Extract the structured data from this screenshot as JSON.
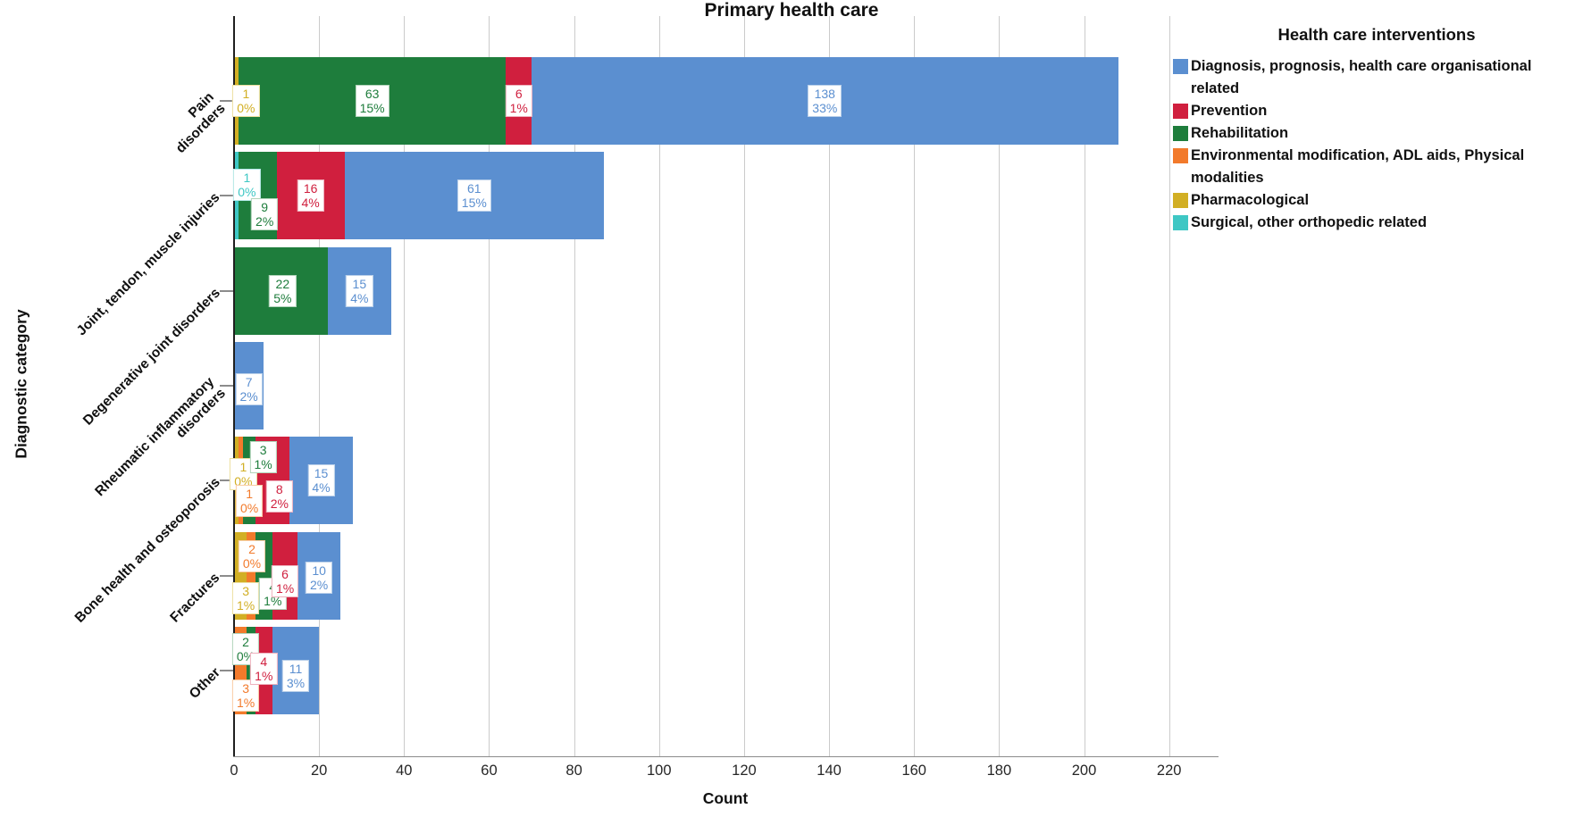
{
  "title": "Primary health care",
  "series": {
    "diagnosis": {
      "label": "Diagnosis, prognosis, health care organisational related",
      "color": "#5B8FD0",
      "light": "#b9cfe9"
    },
    "prevention": {
      "label": "Prevention",
      "color": "#D01F3E",
      "light": "#eeb0bd"
    },
    "rehabilitation": {
      "label": "Rehabilitation",
      "color": "#1E7D3C",
      "light": "#b2d4ba"
    },
    "environmental": {
      "label": "Environmental modification, ADL aids, Physical modalities",
      "color": "#F27A2B",
      "light": "#f9cda5"
    },
    "pharmacological": {
      "label": "Pharmacological",
      "color": "#D2AF24",
      "light": "#ecdf9e"
    },
    "surgical": {
      "label": "Surgical, other orthopedic related",
      "color": "#3EC7C4",
      "light": "#b4e8e6"
    }
  },
  "legend": {
    "title": "Health care interventions",
    "items": [
      {
        "key": "diagnosis"
      },
      {
        "key": "prevention"
      },
      {
        "key": "rehabilitation"
      },
      {
        "key": "environmental"
      },
      {
        "key": "pharmacological"
      },
      {
        "key": "surgical"
      }
    ]
  },
  "chart_data": {
    "type": "bar",
    "orientation": "horizontal",
    "stacked": true,
    "title": "Primary health care",
    "xlabel": "Count",
    "ylabel": "Diagnostic category",
    "xlim": [
      0,
      220
    ],
    "xticks": [
      0,
      20,
      40,
      60,
      80,
      100,
      120,
      140,
      160,
      180,
      200,
      220
    ],
    "grid": true,
    "legend_position": "top-right",
    "stack_order_left_to_right": [
      "surgical",
      "pharmacological",
      "environmental",
      "rehabilitation",
      "prevention",
      "diagnosis"
    ],
    "bars": [
      {
        "category": "Pain disorders",
        "label_lines": [
          "Pain",
          "disorders"
        ],
        "segments": [
          {
            "series": "pharmacological",
            "value": 1,
            "pct": "0%",
            "label_dx": 11,
            "label_dy": 0
          },
          {
            "series": "rehabilitation",
            "value": 63,
            "pct": "15%",
            "label_dx": 0,
            "label_dy": 0
          },
          {
            "series": "prevention",
            "value": 6,
            "pct": "1%",
            "label_dx": 0,
            "label_dy": 0
          },
          {
            "series": "diagnosis",
            "value": 138,
            "pct": "33%",
            "label_dx": 0,
            "label_dy": 0
          }
        ]
      },
      {
        "category": "Joint, tendon, muscle injuries",
        "label_lines": [
          "Joint, tendon, muscle injuries"
        ],
        "segments": [
          {
            "series": "surgical",
            "value": 1,
            "pct": "0%",
            "label_dx": 12,
            "label_dy": -12
          },
          {
            "series": "rehabilitation",
            "value": 9,
            "pct": "2%",
            "label_dx": 8,
            "label_dy": 21
          },
          {
            "series": "prevention",
            "value": 16,
            "pct": "4%",
            "label_dx": 0,
            "label_dy": 0
          },
          {
            "series": "diagnosis",
            "value": 61,
            "pct": "15%",
            "label_dx": 0,
            "label_dy": 0
          }
        ]
      },
      {
        "category": "Degenerative joint disorders",
        "label_lines": [
          "Degenerative joint disorders"
        ],
        "segments": [
          {
            "series": "rehabilitation",
            "value": 22,
            "pct": "5%",
            "label_dx": 2,
            "label_dy": 0
          },
          {
            "series": "diagnosis",
            "value": 15,
            "pct": "4%",
            "label_dx": 0,
            "label_dy": 0
          }
        ]
      },
      {
        "category": "Rheumatic inflammatory disorders",
        "label_lines": [
          "Rheumatic inflammatory",
          "disorders"
        ],
        "segments": [
          {
            "series": "diagnosis",
            "value": 7,
            "pct": "2%",
            "label_dx": 0,
            "label_dy": 4
          }
        ]
      },
      {
        "category": "Bone health and osteoporosis",
        "label_lines": [
          "Bone health and osteoporosis"
        ],
        "segments": [
          {
            "series": "pharmacological",
            "value": 1,
            "pct": "0%",
            "label_dx": 8,
            "label_dy": -7
          },
          {
            "series": "environmental",
            "value": 1,
            "pct": "0%",
            "label_dx": 10,
            "label_dy": 23
          },
          {
            "series": "rehabilitation",
            "value": 3,
            "pct": "1%",
            "label_dx": 16,
            "label_dy": -26
          },
          {
            "series": "prevention",
            "value": 8,
            "pct": "2%",
            "label_dx": 8,
            "label_dy": 18
          },
          {
            "series": "diagnosis",
            "value": 15,
            "pct": "4%",
            "label_dx": 0,
            "label_dy": 0
          }
        ]
      },
      {
        "category": "Fractures",
        "label_lines": [
          "Fractures"
        ],
        "segments": [
          {
            "series": "pharmacological",
            "value": 3,
            "pct": "1%",
            "label_dx": 6,
            "label_dy": 25
          },
          {
            "series": "environmental",
            "value": 2,
            "pct": "0%",
            "label_dx": 1,
            "label_dy": -22
          },
          {
            "series": "rehabilitation",
            "value": 4,
            "pct": "1%",
            "label_dx": 10,
            "label_dy": 20
          },
          {
            "series": "prevention",
            "value": 6,
            "pct": "1%",
            "label_dx": 0,
            "label_dy": 6
          },
          {
            "series": "diagnosis",
            "value": 10,
            "pct": "2%",
            "label_dx": 0,
            "label_dy": 2
          }
        ]
      },
      {
        "category": "Other",
        "label_lines": [
          "Other"
        ],
        "segments": [
          {
            "series": "environmental",
            "value": 3,
            "pct": "1%",
            "label_dx": 6,
            "label_dy": 28
          },
          {
            "series": "rehabilitation",
            "value": 2,
            "pct": "0%",
            "label_dx": -6,
            "label_dy": -24
          },
          {
            "series": "prevention",
            "value": 4,
            "pct": "1%",
            "label_dx": 0,
            "label_dy": -2
          },
          {
            "series": "diagnosis",
            "value": 11,
            "pct": "3%",
            "label_dx": 0,
            "label_dy": 6
          }
        ]
      }
    ]
  }
}
